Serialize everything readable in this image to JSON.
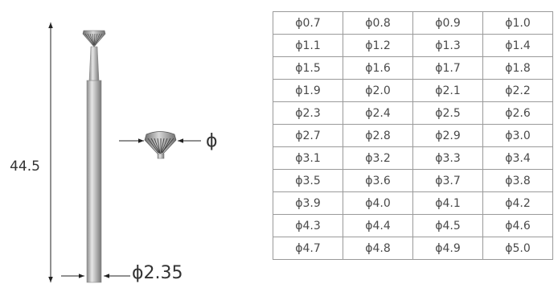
{
  "dimensions": {
    "length_label": "44.5",
    "shank_diameter_label": "ϕ2.35",
    "head_diameter_label": "ϕ"
  },
  "sizes": {
    "rows": [
      [
        "ϕ0.7",
        "ϕ0.8",
        "ϕ0.9",
        "ϕ1.0"
      ],
      [
        "ϕ1.1",
        "ϕ1.2",
        "ϕ1.3",
        "ϕ1.4"
      ],
      [
        "ϕ1.5",
        "ϕ1.6",
        "ϕ1.7",
        "ϕ1.8"
      ],
      [
        "ϕ1.9",
        "ϕ2.0",
        "ϕ2.1",
        "ϕ2.2"
      ],
      [
        "ϕ2.3",
        "ϕ2.4",
        "ϕ2.5",
        "ϕ2.6"
      ],
      [
        "ϕ2.7",
        "ϕ2.8",
        "ϕ2.9",
        "ϕ3.0"
      ],
      [
        "ϕ3.1",
        "ϕ3.2",
        "ϕ3.3",
        "ϕ3.4"
      ],
      [
        "ϕ3.5",
        "ϕ3.6",
        "ϕ3.7",
        "ϕ3.8"
      ],
      [
        "ϕ3.9",
        "ϕ4.0",
        "ϕ4.1",
        "ϕ4.2"
      ],
      [
        "ϕ4.3",
        "ϕ4.4",
        "ϕ4.5",
        "ϕ4.6"
      ],
      [
        "ϕ4.7",
        "ϕ4.8",
        "ϕ4.9",
        "ϕ5.0"
      ]
    ]
  },
  "colors": {
    "steel_light": "#e4e4e4",
    "steel_mid": "#b8b8b8",
    "steel_dark": "#7c7c7c",
    "line": "#222222",
    "table_border": "#9a9a9a"
  }
}
